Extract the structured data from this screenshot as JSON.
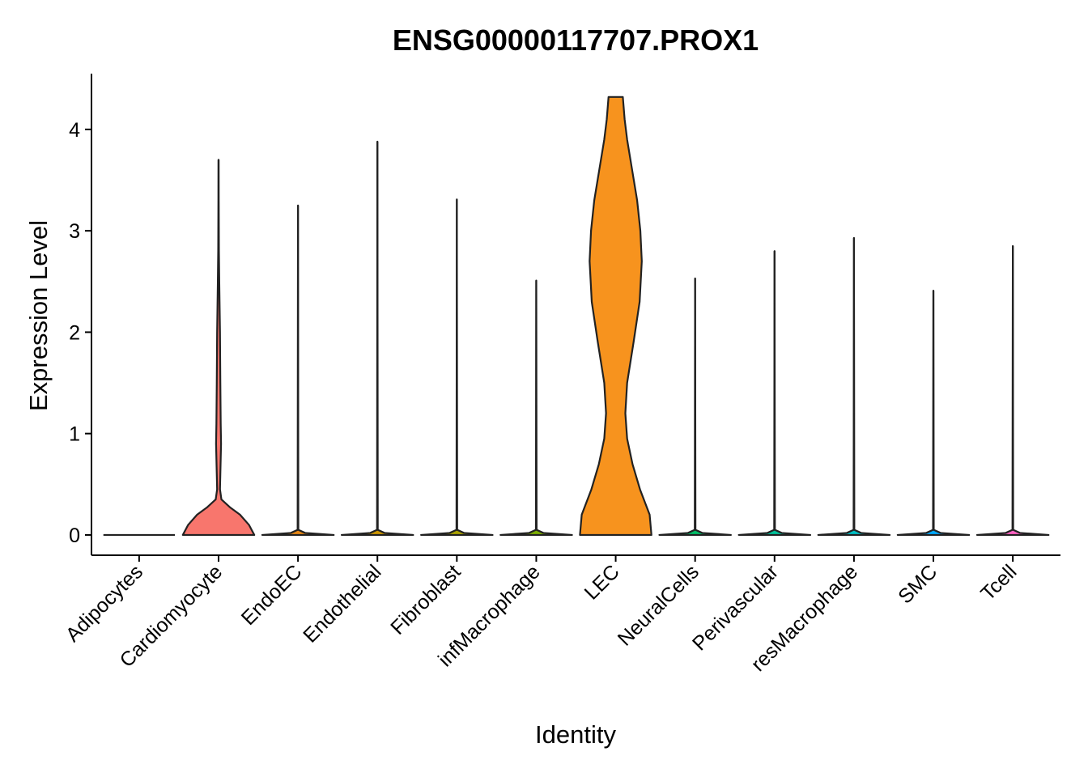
{
  "chart_data": {
    "type": "violin",
    "title": "ENSG00000117707.PROX1",
    "xlabel": "Identity",
    "ylabel": "Expression Level",
    "ylim": [
      -0.2,
      4.55
    ],
    "yticks": [
      0,
      1,
      2,
      3,
      4
    ],
    "grid": false,
    "legend": "none",
    "categories": [
      "Adipocytes",
      "Cardiomyocyte",
      "EndoEC",
      "Endothelial",
      "Fibroblast",
      "infMacrophage",
      "LEC",
      "NeuralCells",
      "Perivascular",
      "resMacrophage",
      "SMC",
      "Tcell"
    ],
    "max_values": [
      0,
      3.7,
      3.25,
      3.88,
      3.31,
      2.51,
      4.32,
      2.53,
      2.8,
      2.93,
      2.41,
      2.85
    ],
    "colors": [
      "#F8766D",
      "#F8766D",
      "#E68613",
      "#CD9600",
      "#ABA300",
      "#7CAE00",
      "#F7931E",
      "#00BE67",
      "#00C19A",
      "#00BFC4",
      "#00A9FF",
      "#FF61C3"
    ],
    "densities": [
      [
        [
          0,
          1.0
        ]
      ],
      [
        [
          0,
          1.0
        ],
        [
          0.1,
          0.85
        ],
        [
          0.2,
          0.6
        ],
        [
          0.27,
          0.33
        ],
        [
          0.35,
          0.08
        ],
        [
          0.45,
          0.04
        ],
        [
          0.6,
          0.05
        ],
        [
          0.75,
          0.06
        ],
        [
          0.9,
          0.07
        ],
        [
          1.1,
          0.06
        ],
        [
          1.5,
          0.05
        ],
        [
          2.0,
          0.04
        ],
        [
          2.5,
          0.02
        ],
        [
          2.8,
          0.01
        ],
        [
          3.3,
          0.004
        ],
        [
          3.7,
          0.002
        ]
      ],
      [
        [
          0,
          1.0
        ],
        [
          0.02,
          0.2
        ],
        [
          0.05,
          0.01
        ],
        [
          3.25,
          0.0
        ]
      ],
      [
        [
          0,
          1.0
        ],
        [
          0.02,
          0.2
        ],
        [
          0.05,
          0.01
        ],
        [
          3.88,
          0.0
        ]
      ],
      [
        [
          0,
          1.0
        ],
        [
          0.02,
          0.2
        ],
        [
          0.05,
          0.01
        ],
        [
          3.31,
          0.0
        ]
      ],
      [
        [
          0,
          1.0
        ],
        [
          0.02,
          0.2
        ],
        [
          0.05,
          0.01
        ],
        [
          2.51,
          0.0
        ]
      ],
      [
        [
          0,
          1.0
        ],
        [
          0.2,
          0.95
        ],
        [
          0.45,
          0.68
        ],
        [
          0.7,
          0.47
        ],
        [
          0.95,
          0.32
        ],
        [
          1.2,
          0.27
        ],
        [
          1.5,
          0.32
        ],
        [
          1.9,
          0.5
        ],
        [
          2.3,
          0.67
        ],
        [
          2.7,
          0.73
        ],
        [
          3.0,
          0.69
        ],
        [
          3.3,
          0.6
        ],
        [
          3.6,
          0.46
        ],
        [
          3.9,
          0.32
        ],
        [
          4.1,
          0.25
        ],
        [
          4.32,
          0.2
        ]
      ],
      [
        [
          0,
          1.0
        ],
        [
          0.02,
          0.2
        ],
        [
          0.05,
          0.01
        ],
        [
          2.53,
          0.0
        ]
      ],
      [
        [
          0,
          1.0
        ],
        [
          0.02,
          0.2
        ],
        [
          0.05,
          0.01
        ],
        [
          2.8,
          0.0
        ]
      ],
      [
        [
          0,
          1.0
        ],
        [
          0.02,
          0.2
        ],
        [
          0.05,
          0.01
        ],
        [
          2.93,
          0.0
        ]
      ],
      [
        [
          0,
          1.0
        ],
        [
          0.02,
          0.2
        ],
        [
          0.05,
          0.01
        ],
        [
          2.41,
          0.0
        ]
      ],
      [
        [
          0,
          1.0
        ],
        [
          0.02,
          0.2
        ],
        [
          0.05,
          0.01
        ],
        [
          2.85,
          0.0
        ]
      ]
    ]
  }
}
